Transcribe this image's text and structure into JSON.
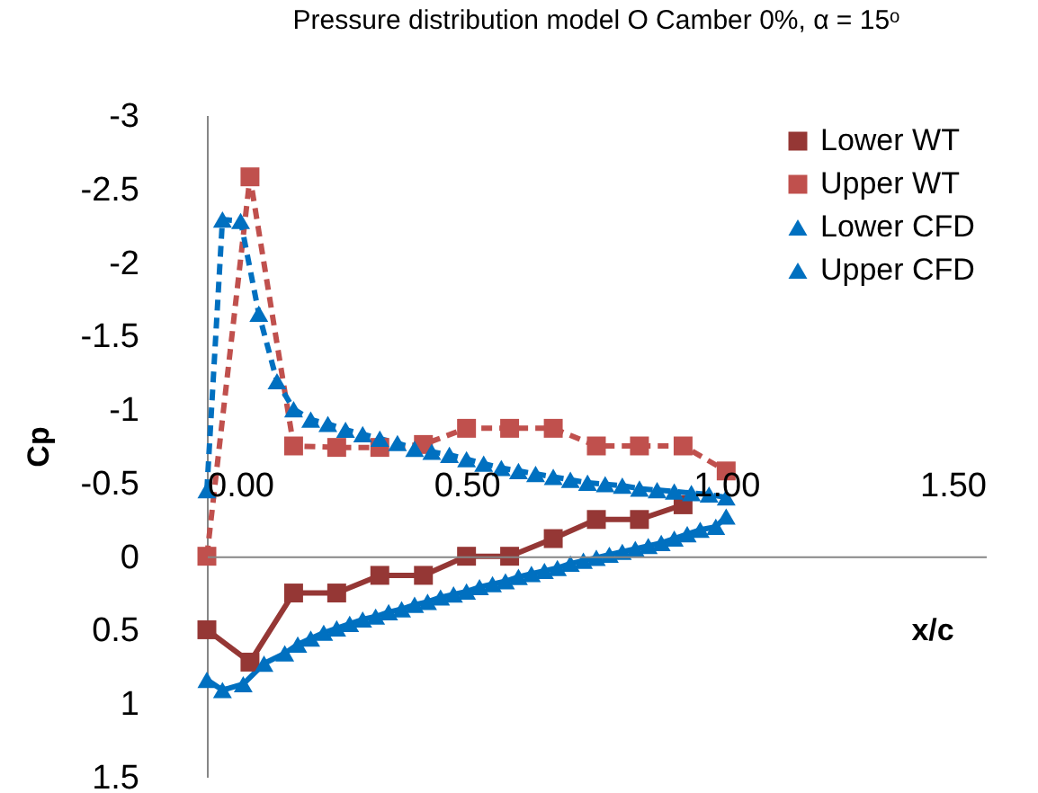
{
  "chart_data": {
    "type": "line",
    "title": "Pressure  distribution model O Camber 0%, α = 15ᵒ",
    "xlabel": "x/c",
    "ylabel": "Cp",
    "xlim": [
      0,
      1.5
    ],
    "xticks": [
      {
        "value": 0,
        "label": "0.00"
      },
      {
        "value": 0.5,
        "label": "0.50"
      },
      {
        "value": 1,
        "label": "1.00"
      },
      {
        "value": 1.5,
        "label": "1.50"
      }
    ],
    "ylim": [
      1.5,
      -3
    ],
    "yticks": [
      -3,
      -2.5,
      -2,
      -1.5,
      -1,
      -0.5,
      0,
      0.5,
      1,
      1.5
    ],
    "grid": false,
    "legend": "top right",
    "series": [
      {
        "name": "Lower WT",
        "color": "#953735",
        "marker": "square",
        "line_style": "solid",
        "x": [
          0,
          0.083,
          0.167,
          0.25,
          0.333,
          0.417,
          0.5,
          0.583,
          0.667,
          0.75,
          0.833,
          0.917
        ],
        "values": [
          0.5,
          0.72,
          0.25,
          0.25,
          0.13,
          0.13,
          0,
          0,
          -0.12,
          -0.25,
          -0.25,
          -0.35
        ]
      },
      {
        "name": "Upper WT",
        "color": "#c0504d",
        "marker": "square",
        "line_style": "dashed",
        "x": [
          0,
          0.083,
          0.167,
          0.25,
          0.333,
          0.417,
          0.5,
          0.583,
          0.667,
          0.75,
          0.833,
          0.917,
          1.0
        ],
        "values": [
          0,
          -2.58,
          -0.75,
          -0.74,
          -0.74,
          -0.76,
          -0.87,
          -0.87,
          -0.87,
          -0.75,
          -0.75,
          -0.75,
          -0.58
        ]
      },
      {
        "name": "Lower CFD",
        "color": "#0070c0",
        "marker": "triangle",
        "line_style": "solid",
        "x": [
          0,
          0.03,
          0.07,
          0.11,
          0.15,
          0.175,
          0.2,
          0.225,
          0.25,
          0.275,
          0.3,
          0.325,
          0.35,
          0.375,
          0.4,
          0.425,
          0.45,
          0.475,
          0.5,
          0.525,
          0.55,
          0.575,
          0.6,
          0.625,
          0.65,
          0.675,
          0.7,
          0.725,
          0.75,
          0.775,
          0.8,
          0.825,
          0.85,
          0.875,
          0.9,
          0.925,
          0.95,
          0.98,
          1.0
        ],
        "values": [
          0.84,
          0.91,
          0.87,
          0.73,
          0.66,
          0.6,
          0.56,
          0.52,
          0.49,
          0.46,
          0.43,
          0.41,
          0.38,
          0.36,
          0.33,
          0.31,
          0.28,
          0.26,
          0.24,
          0.21,
          0.19,
          0.17,
          0.14,
          0.12,
          0.1,
          0.08,
          0.05,
          0.03,
          0.01,
          -0.01,
          -0.03,
          -0.05,
          -0.07,
          -0.09,
          -0.12,
          -0.15,
          -0.18,
          -0.2,
          -0.27
        ]
      },
      {
        "name": "Upper CFD",
        "color": "#0070c0",
        "marker": "triangle",
        "line_style": "dashed",
        "x": [
          0,
          0.03,
          0.065,
          0.1,
          0.135,
          0.167,
          0.2,
          0.233,
          0.267,
          0.3,
          0.333,
          0.367,
          0.4,
          0.433,
          0.467,
          0.5,
          0.533,
          0.567,
          0.6,
          0.633,
          0.667,
          0.7,
          0.733,
          0.767,
          0.8,
          0.833,
          0.867,
          0.9,
          0.933,
          0.967,
          1.0
        ],
        "values": [
          -0.45,
          -2.29,
          -2.28,
          -1.65,
          -1.19,
          -1.0,
          -0.93,
          -0.9,
          -0.86,
          -0.83,
          -0.8,
          -0.77,
          -0.73,
          -0.71,
          -0.69,
          -0.66,
          -0.63,
          -0.6,
          -0.58,
          -0.56,
          -0.54,
          -0.52,
          -0.5,
          -0.49,
          -0.48,
          -0.46,
          -0.45,
          -0.44,
          -0.43,
          -0.42,
          -0.4
        ]
      }
    ]
  }
}
